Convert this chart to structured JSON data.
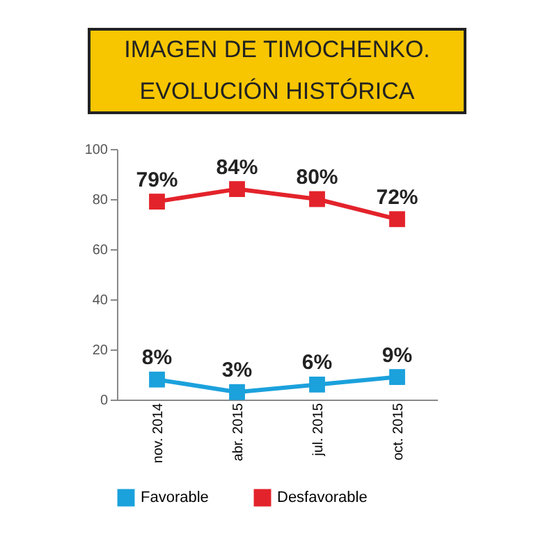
{
  "chart_data": {
    "type": "line",
    "title": "IMAGEN DE TIMOCHENKO. EVOLUCIÓN HISTÓRICA",
    "categories": [
      "nov. 2014",
      "abr. 2015",
      "jul. 2015",
      "oct. 2015"
    ],
    "series": [
      {
        "name": "Favorable",
        "color": "#1ba1dc",
        "values": [
          8,
          3,
          6,
          9
        ],
        "value_labels": [
          "8%",
          "3%",
          "6%",
          "9%"
        ]
      },
      {
        "name": "Desfavorable",
        "color": "#e3232b",
        "values": [
          79,
          84,
          80,
          72
        ],
        "value_labels": [
          "79%",
          "84%",
          "80%",
          "72%"
        ]
      }
    ],
    "ylim": [
      0,
      100
    ],
    "yticks": [
      0,
      20,
      40,
      60,
      80,
      100
    ],
    "grid": false,
    "legend": "bottom",
    "marker": "square",
    "line_style": "solid"
  }
}
